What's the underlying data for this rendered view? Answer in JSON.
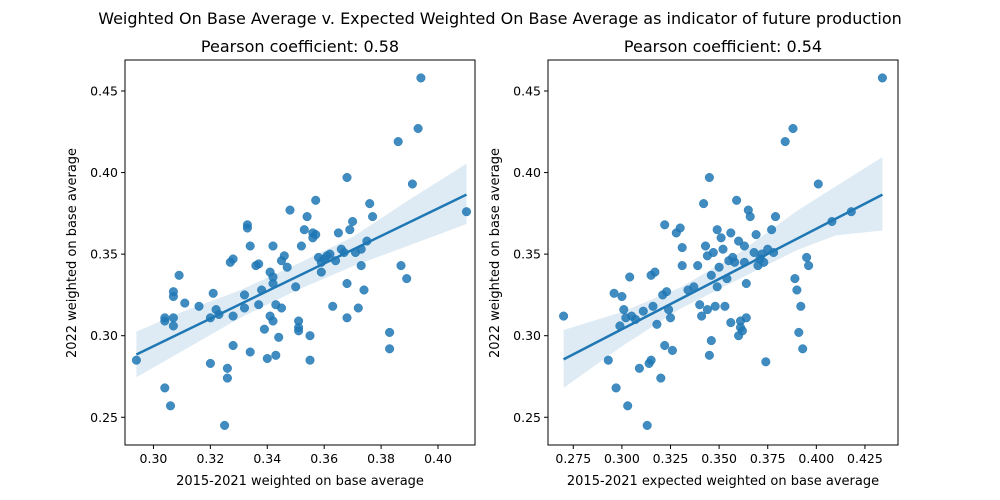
{
  "suptitle": "Weighted On Base Average v. Expected Weighted On Base Average as indicator of future production",
  "colors": {
    "point": "#1f77b4",
    "line": "#1f77b4",
    "band": "#1f77b4",
    "axis": "#000000"
  },
  "chart_data": [
    {
      "type": "scatter",
      "title": "Pearson coefficient: 0.58",
      "xlabel": "2015-2021 weighted on base average",
      "ylabel": "2022 weighted on base average",
      "xlim": [
        0.29,
        0.413
      ],
      "ylim": [
        0.233,
        0.469
      ],
      "xticks": [
        0.3,
        0.32,
        0.34,
        0.36,
        0.38,
        0.4
      ],
      "xtick_labels": [
        "0.30",
        "0.32",
        "0.34",
        "0.36",
        "0.38",
        "0.40"
      ],
      "yticks": [
        0.25,
        0.3,
        0.35,
        0.4,
        0.45
      ],
      "ytick_labels": [
        "0.25",
        "0.30",
        "0.35",
        "0.40",
        "0.45"
      ],
      "regression": {
        "x": [
          0.294,
          0.41
        ],
        "y": [
          0.2885,
          0.3865
        ]
      },
      "band": {
        "x": [
          0.294,
          0.31,
          0.33,
          0.35,
          0.37,
          0.39,
          0.41
        ],
        "lower": [
          0.2745,
          0.2905,
          0.3105,
          0.3275,
          0.3425,
          0.3555,
          0.3685
        ],
        "upper": [
          0.3025,
          0.3145,
          0.3275,
          0.3435,
          0.3605,
          0.3835,
          0.4055
        ]
      },
      "points": [
        [
          0.294,
          0.285
        ],
        [
          0.304,
          0.268
        ],
        [
          0.304,
          0.311
        ],
        [
          0.304,
          0.309
        ],
        [
          0.306,
          0.257
        ],
        [
          0.307,
          0.324
        ],
        [
          0.307,
          0.327
        ],
        [
          0.307,
          0.306
        ],
        [
          0.307,
          0.311
        ],
        [
          0.309,
          0.337
        ],
        [
          0.311,
          0.32
        ],
        [
          0.316,
          0.318
        ],
        [
          0.32,
          0.283
        ],
        [
          0.32,
          0.311
        ],
        [
          0.321,
          0.326
        ],
        [
          0.322,
          0.316
        ],
        [
          0.323,
          0.313
        ],
        [
          0.325,
          0.245
        ],
        [
          0.326,
          0.274
        ],
        [
          0.326,
          0.28
        ],
        [
          0.327,
          0.345
        ],
        [
          0.328,
          0.347
        ],
        [
          0.328,
          0.294
        ],
        [
          0.328,
          0.312
        ],
        [
          0.332,
          0.325
        ],
        [
          0.332,
          0.317
        ],
        [
          0.333,
          0.368
        ],
        [
          0.333,
          0.366
        ],
        [
          0.334,
          0.355
        ],
        [
          0.334,
          0.29
        ],
        [
          0.336,
          0.343
        ],
        [
          0.337,
          0.344
        ],
        [
          0.337,
          0.319
        ],
        [
          0.338,
          0.328
        ],
        [
          0.339,
          0.304
        ],
        [
          0.34,
          0.286
        ],
        [
          0.341,
          0.312
        ],
        [
          0.341,
          0.339
        ],
        [
          0.342,
          0.309
        ],
        [
          0.342,
          0.336
        ],
        [
          0.342,
          0.332
        ],
        [
          0.342,
          0.355
        ],
        [
          0.343,
          0.319
        ],
        [
          0.343,
          0.288
        ],
        [
          0.344,
          0.299
        ],
        [
          0.345,
          0.317
        ],
        [
          0.345,
          0.346
        ],
        [
          0.346,
          0.349
        ],
        [
          0.347,
          0.342
        ],
        [
          0.348,
          0.377
        ],
        [
          0.35,
          0.33
        ],
        [
          0.351,
          0.309
        ],
        [
          0.351,
          0.305
        ],
        [
          0.351,
          0.303
        ],
        [
          0.352,
          0.355
        ],
        [
          0.353,
          0.365
        ],
        [
          0.354,
          0.373
        ],
        [
          0.355,
          0.285
        ],
        [
          0.355,
          0.3
        ],
        [
          0.356,
          0.363
        ],
        [
          0.356,
          0.36
        ],
        [
          0.357,
          0.383
        ],
        [
          0.357,
          0.362
        ],
        [
          0.358,
          0.348
        ],
        [
          0.359,
          0.345
        ],
        [
          0.359,
          0.339
        ],
        [
          0.36,
          0.347
        ],
        [
          0.361,
          0.349
        ],
        [
          0.362,
          0.35
        ],
        [
          0.363,
          0.318
        ],
        [
          0.364,
          0.346
        ],
        [
          0.365,
          0.363
        ],
        [
          0.366,
          0.353
        ],
        [
          0.367,
          0.351
        ],
        [
          0.368,
          0.397
        ],
        [
          0.368,
          0.332
        ],
        [
          0.368,
          0.311
        ],
        [
          0.369,
          0.365
        ],
        [
          0.37,
          0.37
        ],
        [
          0.371,
          0.351
        ],
        [
          0.372,
          0.317
        ],
        [
          0.373,
          0.353
        ],
        [
          0.373,
          0.343
        ],
        [
          0.374,
          0.328
        ],
        [
          0.375,
          0.358
        ],
        [
          0.376,
          0.381
        ],
        [
          0.377,
          0.373
        ],
        [
          0.383,
          0.302
        ],
        [
          0.383,
          0.292
        ],
        [
          0.386,
          0.419
        ],
        [
          0.387,
          0.343
        ],
        [
          0.389,
          0.335
        ],
        [
          0.391,
          0.393
        ],
        [
          0.393,
          0.427
        ],
        [
          0.394,
          0.458
        ],
        [
          0.41,
          0.376
        ]
      ]
    },
    {
      "type": "scatter",
      "title": "Pearson coefficient: 0.54",
      "xlabel": "2015-2021 expected weighted on base average",
      "ylabel": "2022 weighted on base average",
      "xlim": [
        0.262,
        0.442
      ],
      "ylim": [
        0.233,
        0.469
      ],
      "xticks": [
        0.275,
        0.3,
        0.325,
        0.35,
        0.375,
        0.4,
        0.425
      ],
      "xtick_labels": [
        "0.275",
        "0.300",
        "0.325",
        "0.350",
        "0.375",
        "0.400",
        "0.425"
      ],
      "yticks": [
        0.25,
        0.3,
        0.35,
        0.4,
        0.45
      ],
      "ytick_labels": [
        "0.25",
        "0.30",
        "0.35",
        "0.40",
        "0.45"
      ],
      "regression": {
        "x": [
          0.27,
          0.434
        ],
        "y": [
          0.2855,
          0.3865
        ]
      },
      "band": {
        "x": [
          0.27,
          0.3,
          0.33,
          0.36,
          0.39,
          0.41,
          0.434
        ],
        "lower": [
          0.268,
          0.2935,
          0.3165,
          0.3345,
          0.3525,
          0.3615,
          0.3645
        ],
        "upper": [
          0.3035,
          0.3145,
          0.3295,
          0.3505,
          0.3765,
          0.3915,
          0.4095
        ]
      },
      "points": [
        [
          0.27,
          0.312
        ],
        [
          0.293,
          0.285
        ],
        [
          0.296,
          0.326
        ],
        [
          0.297,
          0.268
        ],
        [
          0.299,
          0.306
        ],
        [
          0.3,
          0.324
        ],
        [
          0.301,
          0.316
        ],
        [
          0.302,
          0.311
        ],
        [
          0.303,
          0.257
        ],
        [
          0.304,
          0.336
        ],
        [
          0.305,
          0.312
        ],
        [
          0.307,
          0.31
        ],
        [
          0.309,
          0.28
        ],
        [
          0.311,
          0.315
        ],
        [
          0.313,
          0.245
        ],
        [
          0.314,
          0.283
        ],
        [
          0.315,
          0.285
        ],
        [
          0.315,
          0.337
        ],
        [
          0.316,
          0.318
        ],
        [
          0.317,
          0.339
        ],
        [
          0.318,
          0.307
        ],
        [
          0.32,
          0.274
        ],
        [
          0.321,
          0.325
        ],
        [
          0.322,
          0.368
        ],
        [
          0.322,
          0.294
        ],
        [
          0.323,
          0.327
        ],
        [
          0.324,
          0.316
        ],
        [
          0.325,
          0.311
        ],
        [
          0.326,
          0.291
        ],
        [
          0.328,
          0.363
        ],
        [
          0.33,
          0.366
        ],
        [
          0.331,
          0.354
        ],
        [
          0.331,
          0.343
        ],
        [
          0.334,
          0.328
        ],
        [
          0.337,
          0.33
        ],
        [
          0.339,
          0.343
        ],
        [
          0.34,
          0.319
        ],
        [
          0.341,
          0.312
        ],
        [
          0.342,
          0.381
        ],
        [
          0.343,
          0.355
        ],
        [
          0.344,
          0.316
        ],
        [
          0.344,
          0.349
        ],
        [
          0.345,
          0.288
        ],
        [
          0.345,
          0.397
        ],
        [
          0.346,
          0.297
        ],
        [
          0.346,
          0.337
        ],
        [
          0.347,
          0.351
        ],
        [
          0.348,
          0.318
        ],
        [
          0.349,
          0.33
        ],
        [
          0.349,
          0.365
        ],
        [
          0.35,
          0.342
        ],
        [
          0.351,
          0.36
        ],
        [
          0.352,
          0.353
        ],
        [
          0.353,
          0.318
        ],
        [
          0.354,
          0.335
        ],
        [
          0.355,
          0.346
        ],
        [
          0.356,
          0.363
        ],
        [
          0.356,
          0.308
        ],
        [
          0.357,
          0.348
        ],
        [
          0.358,
          0.345
        ],
        [
          0.359,
          0.383
        ],
        [
          0.36,
          0.358
        ],
        [
          0.36,
          0.3
        ],
        [
          0.361,
          0.309
        ],
        [
          0.361,
          0.305
        ],
        [
          0.362,
          0.303
        ],
        [
          0.363,
          0.355
        ],
        [
          0.363,
          0.345
        ],
        [
          0.364,
          0.311
        ],
        [
          0.364,
          0.332
        ],
        [
          0.365,
          0.377
        ],
        [
          0.366,
          0.373
        ],
        [
          0.368,
          0.351
        ],
        [
          0.369,
          0.362
        ],
        [
          0.37,
          0.343
        ],
        [
          0.371,
          0.347
        ],
        [
          0.372,
          0.35
        ],
        [
          0.373,
          0.345
        ],
        [
          0.374,
          0.284
        ],
        [
          0.375,
          0.353
        ],
        [
          0.377,
          0.365
        ],
        [
          0.378,
          0.351
        ],
        [
          0.379,
          0.373
        ],
        [
          0.384,
          0.419
        ],
        [
          0.388,
          0.427
        ],
        [
          0.389,
          0.335
        ],
        [
          0.39,
          0.328
        ],
        [
          0.391,
          0.302
        ],
        [
          0.392,
          0.318
        ],
        [
          0.393,
          0.292
        ],
        [
          0.395,
          0.348
        ],
        [
          0.396,
          0.343
        ],
        [
          0.401,
          0.393
        ],
        [
          0.408,
          0.37
        ],
        [
          0.418,
          0.376
        ],
        [
          0.434,
          0.458
        ]
      ]
    }
  ]
}
